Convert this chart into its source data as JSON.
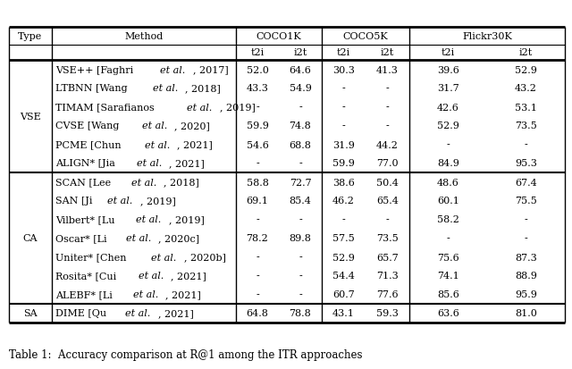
{
  "title": "Table 1:  Accuracy comparison at R@1 among the ITR approaches",
  "rows": [
    {
      "type": "VSE",
      "name": "VSE++",
      "ref": "Faghri ",
      "etal": "et al.",
      "year": ", 2017",
      "c1k_t2i": "52.0",
      "c1k_i2t": "64.6",
      "c5k_t2i": "30.3",
      "c5k_i2t": "41.3",
      "f30k_t2i": "39.6",
      "f30k_i2t": "52.9"
    },
    {
      "type": "VSE",
      "name": "LTBNN",
      "ref": "Wang ",
      "etal": "et al.",
      "year": ", 2018",
      "c1k_t2i": "43.3",
      "c1k_i2t": "54.9",
      "c5k_t2i": "-",
      "c5k_i2t": "-",
      "f30k_t2i": "31.7",
      "f30k_i2t": "43.2"
    },
    {
      "type": "VSE",
      "name": "TIMAM",
      "ref": "Sarafianos ",
      "etal": "et al.",
      "year": ", 2019",
      "c1k_t2i": "-",
      "c1k_i2t": "-",
      "c5k_t2i": "-",
      "c5k_i2t": "-",
      "f30k_t2i": "42.6",
      "f30k_i2t": "53.1"
    },
    {
      "type": "VSE",
      "name": "CVSE",
      "ref": "Wang ",
      "etal": "et al.",
      "year": ", 2020",
      "c1k_t2i": "59.9",
      "c1k_i2t": "74.8",
      "c5k_t2i": "-",
      "c5k_i2t": "-",
      "f30k_t2i": "52.9",
      "f30k_i2t": "73.5"
    },
    {
      "type": "VSE",
      "name": "PCME",
      "ref": "Chun ",
      "etal": "et al.",
      "year": ", 2021",
      "c1k_t2i": "54.6",
      "c1k_i2t": "68.8",
      "c5k_t2i": "31.9",
      "c5k_i2t": "44.2",
      "f30k_t2i": "-",
      "f30k_i2t": "-"
    },
    {
      "type": "VSE",
      "name": "ALIGN*",
      "ref": "Jia ",
      "etal": "et al.",
      "year": ", 2021",
      "c1k_t2i": "-",
      "c1k_i2t": "-",
      "c5k_t2i": "59.9",
      "c5k_i2t": "77.0",
      "f30k_t2i": "84.9",
      "f30k_i2t": "95.3"
    },
    {
      "type": "CA",
      "name": "SCAN",
      "ref": "Lee ",
      "etal": "et al.",
      "year": ", 2018",
      "c1k_t2i": "58.8",
      "c1k_i2t": "72.7",
      "c5k_t2i": "38.6",
      "c5k_i2t": "50.4",
      "f30k_t2i": "48.6",
      "f30k_i2t": "67.4"
    },
    {
      "type": "CA",
      "name": "SAN",
      "ref": "Ji ",
      "etal": "et al.",
      "year": ", 2019",
      "c1k_t2i": "69.1",
      "c1k_i2t": "85.4",
      "c5k_t2i": "46.2",
      "c5k_i2t": "65.4",
      "f30k_t2i": "60.1",
      "f30k_i2t": "75.5"
    },
    {
      "type": "CA",
      "name": "Vilbert*",
      "ref": "Lu ",
      "etal": "et al.",
      "year": ", 2019",
      "c1k_t2i": "-",
      "c1k_i2t": "-",
      "c5k_t2i": "-",
      "c5k_i2t": "-",
      "f30k_t2i": "58.2",
      "f30k_i2t": "-"
    },
    {
      "type": "CA",
      "name": "Oscar*",
      "ref": "Li ",
      "etal": "et al.",
      "year": ", 2020c",
      "c1k_t2i": "78.2",
      "c1k_i2t": "89.8",
      "c5k_t2i": "57.5",
      "c5k_i2t": "73.5",
      "f30k_t2i": "-",
      "f30k_i2t": "-"
    },
    {
      "type": "CA",
      "name": "Uniter*",
      "ref": "Chen ",
      "etal": "et al.",
      "year": ", 2020b",
      "c1k_t2i": "-",
      "c1k_i2t": "-",
      "c5k_t2i": "52.9",
      "c5k_i2t": "65.7",
      "f30k_t2i": "75.6",
      "f30k_i2t": "87.3"
    },
    {
      "type": "CA",
      "name": "Rosita*",
      "ref": "Cui ",
      "etal": "et al.",
      "year": ", 2021",
      "c1k_t2i": "-",
      "c1k_i2t": "-",
      "c5k_t2i": "54.4",
      "c5k_i2t": "71.3",
      "f30k_t2i": "74.1",
      "f30k_i2t": "88.9"
    },
    {
      "type": "CA",
      "name": "ALEBF*",
      "ref": "Li ",
      "etal": "et al.",
      "year": ", 2021",
      "c1k_t2i": "-",
      "c1k_i2t": "-",
      "c5k_t2i": "60.7",
      "c5k_i2t": "77.6",
      "f30k_t2i": "85.6",
      "f30k_i2t": "95.9"
    },
    {
      "type": "SA",
      "name": "DIME",
      "ref": "Qu ",
      "etal": "et al.",
      "year": ", 2021",
      "c1k_t2i": "64.8",
      "c1k_i2t": "78.8",
      "c5k_t2i": "43.1",
      "c5k_i2t": "59.3",
      "f30k_t2i": "63.6",
      "f30k_i2t": "81.0"
    }
  ],
  "type_groups": [
    {
      "label": "VSE",
      "start": 0,
      "end": 5
    },
    {
      "label": "CA",
      "start": 6,
      "end": 12
    },
    {
      "label": "SA",
      "start": 13,
      "end": 13
    }
  ],
  "bg_color": "#ffffff",
  "text_color": "#000000",
  "font_size": 8.0
}
